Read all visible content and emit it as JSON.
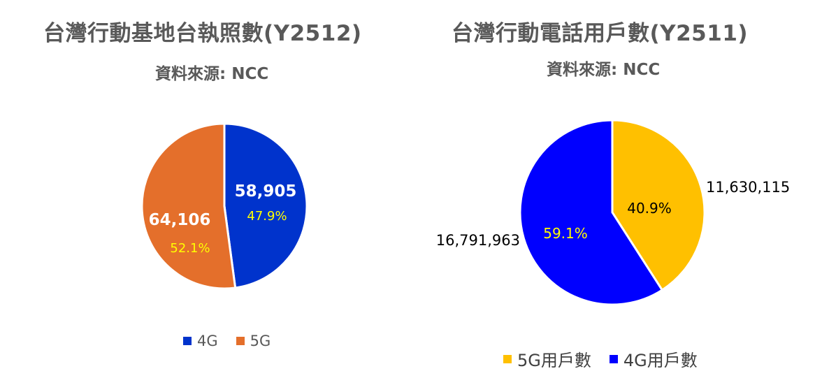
{
  "chart_data": [
    {
      "type": "pie",
      "title": "台灣行動基地台執照數(Y2512)",
      "subtitle": "資料來源: NCC",
      "slices": [
        {
          "label": "4G",
          "value": 58905,
          "value_label": "58,905",
          "percent_label": "47.9%",
          "color": "#0033CC"
        },
        {
          "label": "5G",
          "value": 64106,
          "value_label": "64,106",
          "percent_label": "52.1%",
          "color": "#E46F2B"
        }
      ],
      "legend": [
        "4G",
        "5G"
      ],
      "legend_position": "bottom"
    },
    {
      "type": "pie",
      "title": "台灣行動電話用戶數(Y2511)",
      "subtitle": "資料來源: NCC",
      "slices": [
        {
          "label": "5G用戶數",
          "value": 11630115,
          "value_label": "11,630,115",
          "percent_label": "40.9%",
          "color": "#FFC000"
        },
        {
          "label": "4G用戶數",
          "value": 16791963,
          "value_label": "16,791,963",
          "percent_label": "59.1%",
          "color": "#0000FF"
        }
      ],
      "legend": [
        "5G用戶數",
        "4G用戶數"
      ],
      "legend_position": "bottom"
    }
  ]
}
